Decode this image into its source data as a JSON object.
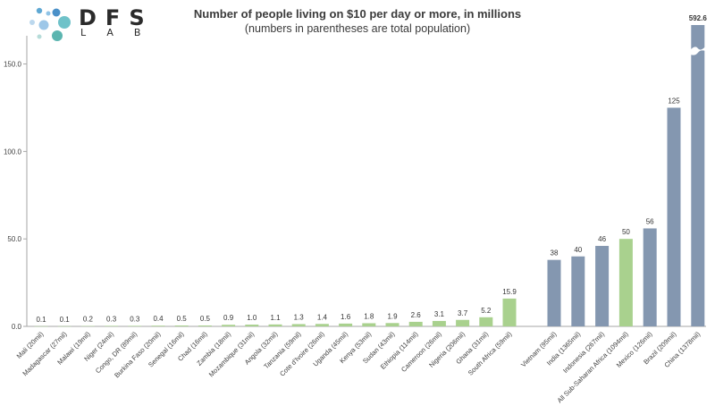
{
  "logo": {
    "letters": "DFS",
    "sub": "LAB"
  },
  "chart_data": {
    "type": "bar",
    "title": "Number of people living on $10 per day or more, in millions",
    "subtitle": "(numbers in parentheses are total population)",
    "xlabel": "",
    "ylabel": "",
    "ylim": [
      0,
      160
    ],
    "yticks": [
      0,
      50,
      100,
      150
    ],
    "ytick_labels": [
      "0.0",
      "50.0",
      "100.0",
      "150.0"
    ],
    "grid": false,
    "axis_break": "China bar truncated at top (value exceeds axis)",
    "colors": {
      "africa": "#a9d18e",
      "comparison": "#8497b0",
      "axis": "#a6a6a6",
      "text": "#404040"
    },
    "groups": [
      "Africa",
      "Comparison"
    ],
    "categories": [
      "Mali (20mil)",
      "Madagascar (27mil)",
      "Malawi (19mil)",
      "Niger (24mil)",
      "Congo, DR (89mil)",
      "Burkina Faso (20mil)",
      "Senegal (16mil)",
      "Chad (16mil)",
      "Zambia (18mil)",
      "Mozambique (31mil)",
      "Angola (32mil)",
      "Tanzania (59mil)",
      "Cote d'Ivoire (26mil)",
      "Uganda (45mil)",
      "Kenya (53mil)",
      "Sudan (43mil)",
      "Ethiopia (114mil)",
      "Cameroon (26mil)",
      "Nigeria (206mil)",
      "Ghana (31mil)",
      "South Africa (59mil)",
      "Vietnam (95mil)",
      "India (1365mil)",
      "Indonesia (267mil)",
      "All Sub-Saharan Africa (1094mil)",
      "Mexico (126mil)",
      "Brazil (209mil)",
      "China (1378mil)"
    ],
    "values": [
      0.1,
      0.1,
      0.2,
      0.3,
      0.3,
      0.4,
      0.5,
      0.5,
      0.9,
      1.0,
      1.1,
      1.3,
      1.4,
      1.6,
      1.8,
      1.9,
      2.6,
      3.1,
      3.7,
      5.2,
      15.9,
      38,
      40,
      46,
      50,
      56,
      125,
      592.6
    ],
    "value_labels": [
      "0.1",
      "0.1",
      "0.2",
      "0.3",
      "0.3",
      "0.4",
      "0.5",
      "0.5",
      "0.9",
      "1.0",
      "1.1",
      "1.3",
      "1.4",
      "1.6",
      "1.8",
      "1.9",
      "2.6",
      "3.1",
      "3.7",
      "5.2",
      "15.9",
      "38",
      "40",
      "46",
      "50",
      "56",
      "125",
      "592.6"
    ],
    "group_of_bar": [
      "Africa",
      "Africa",
      "Africa",
      "Africa",
      "Africa",
      "Africa",
      "Africa",
      "Africa",
      "Africa",
      "Africa",
      "Africa",
      "Africa",
      "Africa",
      "Africa",
      "Africa",
      "Africa",
      "Africa",
      "Africa",
      "Africa",
      "Africa",
      "Africa",
      "Comparison",
      "Comparison",
      "Comparison",
      "Africa",
      "Comparison",
      "Comparison",
      "Comparison"
    ]
  }
}
